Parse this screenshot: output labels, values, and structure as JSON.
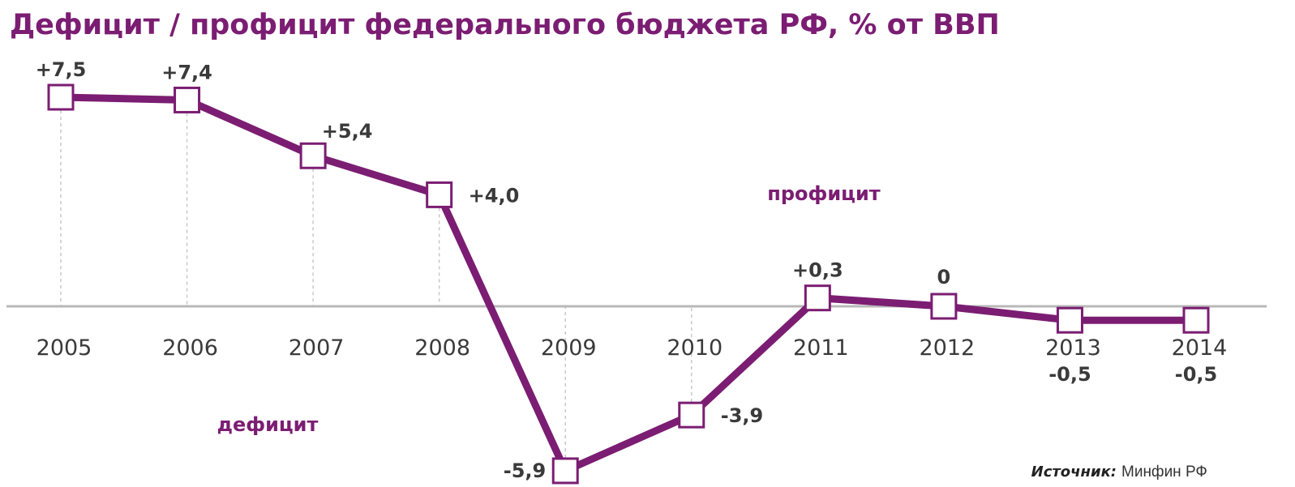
{
  "colors": {
    "series": "#7b1d72",
    "title": "#7b1d72",
    "axis": "#b8b8b8",
    "guide": "#c8c8c8",
    "text": "#3a3a3a"
  },
  "chart_data": {
    "type": "line",
    "title": "Дефицит / профицит федерального бюджета РФ, % от ВВП",
    "x": [
      "2005",
      "2006",
      "2007",
      "2008",
      "2009",
      "2010",
      "2011",
      "2012",
      "2013",
      "2014"
    ],
    "series": [
      {
        "values": [
          7.5,
          7.4,
          5.4,
          4.0,
          -5.9,
          -3.9,
          0.3,
          0,
          -0.5,
          -0.5
        ],
        "labels": [
          "+7,5",
          "+7,4",
          "+5,4",
          "+4,0",
          "-5,9",
          "-3,9",
          "+0,3",
          "0",
          "-0,5",
          "-0,5"
        ]
      }
    ],
    "annotations": {
      "surplus": "профицит",
      "deficit": "дефицит"
    },
    "source_label": "Источник:",
    "source_value": "Минфин РФ",
    "ylim": [
      -6.3,
      8.2
    ],
    "grid": false,
    "legend": "none"
  }
}
